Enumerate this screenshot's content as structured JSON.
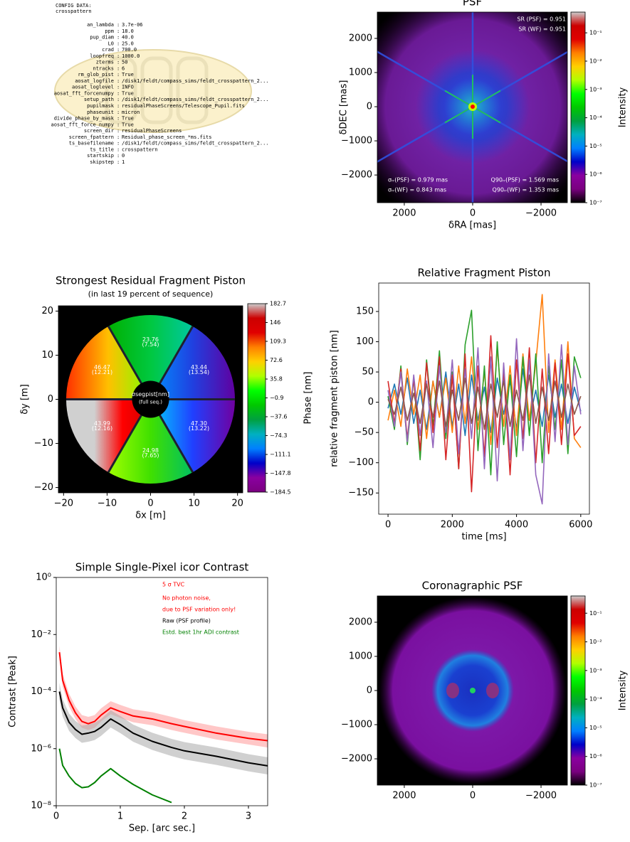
{
  "config": {
    "title": "CONFIG DATA:",
    "name": "crosspattern",
    "separator": ":",
    "entries": [
      [
        "an_lambda",
        "3.7e-06"
      ],
      [
        "ppm",
        "18.0"
      ],
      [
        "pup_diam",
        "40.0"
      ],
      [
        "L0",
        "25.0"
      ],
      [
        "crad",
        "700.0"
      ],
      [
        "loopfreq",
        "1000.0"
      ],
      [
        "zterms",
        "50"
      ],
      [
        "ntracks",
        "6"
      ],
      [
        "rm_glob_pist",
        "True"
      ],
      [
        "aosat_logfile",
        "/disk1/feldt/compass_sims/feldt_crosspattern_2..."
      ],
      [
        "aosat_loglevel",
        "INFO"
      ],
      [
        "aosat_fft_forcenumpy",
        "True"
      ],
      [
        "setup_path",
        "/disk1/feldt/compass_sims/feldt_crosspattern_2..."
      ],
      [
        "pupilmask",
        "residualPhaseScreens/Telescope_Pupil.fits"
      ],
      [
        "phaseunit",
        "micron"
      ],
      [
        "divide_phase_by_mask",
        "True"
      ],
      [
        "aosat_fft_force_numpy",
        "True"
      ],
      [
        "screen_dir",
        "residualPhaseScreens"
      ],
      [
        "screen_fpattern",
        "Residual_phase_screen_*ms.fits"
      ],
      [
        "ts_basefilename",
        "/disk1/feldt/compass_sims/feldt_crosspattern_2..."
      ],
      [
        "ts_title",
        "crosspattern"
      ],
      [
        "startskip",
        "0"
      ],
      [
        "skipstep",
        "1"
      ]
    ]
  },
  "chart_data": [
    {
      "type": "heatmap",
      "title": "PSF",
      "xlabel": "δRA [mas]",
      "ylabel": "δDEC [mas]",
      "xlim": [
        2790,
        -2770
      ],
      "ylim": [
        -2810,
        2770
      ],
      "xticks": [
        2000,
        0,
        {
          "value": -2000,
          "label": "−2000"
        }
      ],
      "yticks": [
        2000,
        1000,
        0,
        {
          "value": -1000,
          "label": "−1000"
        },
        {
          "value": -2000,
          "label": "−2000"
        }
      ],
      "annotations": [
        "SR (PSF) = 0.951",
        "SR (WF) = 0.951",
        "σᵣᵣ(PSF) = 0.979 mas",
        "σᵣᵣ(WF) = 0.843 mas",
        "Q90ᵣᵣ(PSF) = 1.569 mas",
        "Q90ᵣᵣ(WF) = 1.353 mas"
      ],
      "colorbar": {
        "label": "Intensity",
        "scale": "log",
        "lim": [
          1e-07,
          0.54
        ],
        "ticks": [
          {
            "value": 0.1,
            "label": "10⁻¹"
          },
          {
            "value": 0.01,
            "label": "10⁻²"
          },
          {
            "value": 0.001,
            "label": "10⁻³"
          },
          {
            "value": 0.0001,
            "label": "10⁻⁴"
          },
          {
            "value": 1e-05,
            "label": "10⁻⁵"
          },
          {
            "value": 1e-06,
            "label": "10⁻⁶"
          },
          {
            "value": 1e-07,
            "label": "10⁻⁷"
          }
        ],
        "colors": [
          "#000000",
          "#7a007f",
          "#8a00a0",
          "#0000c8",
          "#0080ff",
          "#00b0c0",
          "#00a040",
          "#00c800",
          "#00ff00",
          "#b0ff00",
          "#ffd000",
          "#ff8000",
          "#e00000",
          "#cc0000",
          "#cccccc"
        ]
      }
    },
    {
      "type": "segment_map",
      "title": "Strongest Residual Fragment Piston",
      "subtitle": "(in last 19 percent of sequence)",
      "xlabel": "δx [m]",
      "ylabel": "δy [m]",
      "xlim": [
        -21.2,
        21.2
      ],
      "ylim": [
        -21.2,
        21.2
      ],
      "xticks": [
        {
          "value": -20,
          "label": "−20"
        },
        {
          "value": -10,
          "label": "−10"
        },
        0,
        10,
        20
      ],
      "yticks": [
        {
          "value": -20,
          "label": "−20"
        },
        {
          "value": -10,
          "label": "−10"
        },
        0,
        10,
        20
      ],
      "segments": [
        {
          "mean": "23.76",
          "rms": "(7.54)"
        },
        {
          "mean": "43.44",
          "rms": "(13.54)"
        },
        {
          "mean": "47.30",
          "rms": "(13.22)"
        },
        {
          "mean": "24.98",
          "rms": "(7.65)"
        },
        {
          "mean": "43.99",
          "rms": "(12.16)"
        },
        {
          "mean": "46.47",
          "rms": "(12.21)"
        }
      ],
      "center_label": "σsegpist[nm]",
      "center_sublabel": "(full seq.)",
      "colorbar": {
        "label": "Phase [nm]",
        "scale": "linear",
        "lim": [
          -184.5,
          182.7
        ],
        "ticks": [
          182.7,
          146.0,
          109.3,
          72.6,
          35.8,
          {
            "value": -0.9,
            "label": "−0.9"
          },
          {
            "value": -37.6,
            "label": "−37.6"
          },
          {
            "value": -74.3,
            "label": "−74.3"
          },
          {
            "value": -111.1,
            "label": "−111.1"
          },
          {
            "value": -147.8,
            "label": "−147.8"
          },
          {
            "value": -184.5,
            "label": "−184.5"
          }
        ],
        "colors": [
          "#7a007f",
          "#8a00a0",
          "#0000c8",
          "#0080ff",
          "#00b0c0",
          "#00a040",
          "#00c800",
          "#00ff00",
          "#b0ff00",
          "#ffd000",
          "#ff8000",
          "#e00000",
          "#cc0000",
          "#cccccc"
        ]
      }
    },
    {
      "type": "line",
      "title": "Relative Fragment Piston",
      "xlabel": "time [ms]",
      "ylabel": "relative fragment piston [nm]",
      "xlim": [
        -290,
        6270
      ],
      "ylim": [
        -185,
        197
      ],
      "xticks": [
        0,
        2000,
        4000,
        6000
      ],
      "yticks": [
        {
          "value": -150,
          "label": "−150"
        },
        {
          "value": -100,
          "label": "−100"
        },
        {
          "value": -50,
          "label": "−50"
        },
        0,
        50,
        100,
        150
      ],
      "x": [
        0,
        200,
        400,
        600,
        800,
        1000,
        1200,
        1400,
        1600,
        1800,
        2000,
        2200,
        2400,
        2600,
        2800,
        3000,
        3200,
        3400,
        3600,
        3800,
        4000,
        4200,
        4400,
        4600,
        4800,
        5000,
        5200,
        5400,
        5600,
        5800,
        6000
      ],
      "series": [
        {
          "color": "#1f77b4",
          "values": [
            -10,
            30,
            -20,
            40,
            -35,
            20,
            -45,
            35,
            -25,
            50,
            -40,
            30,
            -55,
            45,
            -30,
            25,
            -50,
            40,
            -20,
            35,
            -45,
            55,
            -30,
            20,
            -40,
            45,
            -25,
            30,
            -35,
            25,
            -15
          ]
        },
        {
          "color": "#ff7f0e",
          "values": [
            -30,
            20,
            -40,
            55,
            -20,
            45,
            -60,
            35,
            -25,
            40,
            -50,
            60,
            -35,
            75,
            -45,
            50,
            -70,
            90,
            -40,
            60,
            -55,
            80,
            -30,
            65,
            178,
            -50,
            70,
            -45,
            100,
            -60,
            -75
          ]
        },
        {
          "color": "#2ca02c",
          "values": [
            10,
            -45,
            60,
            -70,
            40,
            -95,
            70,
            -40,
            85,
            -60,
            50,
            -110,
            95,
            152,
            -80,
            60,
            -120,
            100,
            -70,
            45,
            -90,
            75,
            -55,
            80,
            -100,
            60,
            -45,
            70,
            -85,
            75,
            40
          ]
        },
        {
          "color": "#d62728",
          "values": [
            35,
            -35,
            55,
            -60,
            40,
            -80,
            65,
            -50,
            75,
            -95,
            45,
            -110,
            80,
            -148,
            60,
            -90,
            110,
            -75,
            50,
            -120,
            70,
            -60,
            90,
            -100,
            55,
            -85,
            65,
            -70,
            80,
            -55,
            -40
          ]
        },
        {
          "color": "#9467bd",
          "values": [
            20,
            -40,
            50,
            -65,
            45,
            -55,
            35,
            -75,
            60,
            -50,
            70,
            -85,
            55,
            -60,
            90,
            -110,
            75,
            -130,
            65,
            -95,
            105,
            -80,
            70,
            -120,
            -168,
            80,
            -65,
            95,
            -70,
            60,
            -20
          ]
        },
        {
          "color": "#8c564b",
          "values": [
            5,
            -20,
            25,
            -30,
            15,
            -35,
            30,
            -25,
            35,
            -40,
            20,
            -30,
            40,
            -35,
            25,
            -45,
            30,
            -25,
            35,
            -40,
            20,
            -30,
            45,
            -35,
            25,
            -30,
            35,
            -25,
            30,
            -20,
            10
          ]
        }
      ]
    },
    {
      "type": "line",
      "title": "Simple Single-Pixel icor Contrast",
      "xlabel": "Sep. [arc sec.]",
      "ylabel": "Contrast [Peak]",
      "xlim": [
        0,
        3.3
      ],
      "ylim": [
        1e-08,
        1
      ],
      "yscale": "log",
      "xticks": [
        0,
        1,
        2,
        3
      ],
      "yticks": [
        {
          "value": 1,
          "label": "10⁰"
        },
        {
          "value": 0.01,
          "label": "10⁻²"
        },
        {
          "value": 0.0001,
          "label": "10⁻⁴"
        },
        {
          "value": 1e-06,
          "label": "10⁻⁶"
        },
        {
          "value": 1e-08,
          "label": "10⁻⁸"
        }
      ],
      "annotations": [
        {
          "text": "5 σ TVC",
          "color": "#ff0000"
        },
        {
          "text": "No photon noise,",
          "color": "#ff0000"
        },
        {
          "text": "due to PSF variation only!",
          "color": "#ff0000"
        },
        {
          "text": "Raw (PSF profile)",
          "color": "#000000"
        },
        {
          "text": "Estd. best 1hr ADI contrast",
          "color": "#008000"
        }
      ],
      "x": [
        0.05,
        0.1,
        0.2,
        0.3,
        0.4,
        0.5,
        0.6,
        0.7,
        0.85,
        1.0,
        1.2,
        1.5,
        1.8,
        2.0,
        2.5,
        3.0,
        3.3
      ],
      "series": [
        {
          "color": "#ff0000",
          "band_color": "#ff9999",
          "values": [
            0.0024,
            0.00025,
            5e-05,
            1.8e-05,
            9e-06,
            7.5e-06,
            9e-06,
            1.5e-05,
            2.7e-05,
            2e-05,
            1.4e-05,
            1.1e-05,
            7.5e-06,
            6e-06,
            3.5e-06,
            2.3e-06,
            1.9e-06
          ],
          "lower": [
            0.0014,
            0.00015,
            3e-05,
            1.1e-05,
            5.4e-06,
            4.5e-06,
            5.4e-06,
            9e-06,
            1.6e-05,
            1.2e-05,
            8.4e-06,
            6.6e-06,
            4.5e-06,
            3.6e-06,
            2.1e-06,
            1.4e-06,
            1.1e-06
          ],
          "upper": [
            0.004,
            0.00042,
            8.5e-05,
            3e-05,
            1.5e-05,
            1.3e-05,
            1.5e-05,
            2.6e-05,
            4.6e-05,
            3.4e-05,
            2.4e-05,
            1.9e-05,
            1.3e-05,
            1e-05,
            6e-06,
            3.9e-06,
            3.2e-06
          ]
        },
        {
          "color": "#000000",
          "band_color": "#aaaaaa",
          "values": [
            0.0001,
            2.7e-05,
            8.4e-06,
            4.7e-06,
            3.2e-06,
            3.5e-06,
            4e-06,
            5.6e-06,
            1.1e-05,
            7e-06,
            3.5e-06,
            1.8e-06,
            1.1e-06,
            8.4e-07,
            5.4e-07,
            3.2e-07,
            2.5e-07
          ],
          "lower": [
            5e-05,
            1.35e-05,
            4.2e-06,
            2.35e-06,
            1.6e-06,
            1.75e-06,
            2e-06,
            2.8e-06,
            5.5e-06,
            3.5e-06,
            1.75e-06,
            9e-07,
            5.5e-07,
            4.2e-07,
            2.7e-07,
            1.6e-07,
            1.25e-07
          ],
          "upper": [
            0.0002,
            5.4e-05,
            1.7e-05,
            9.4e-06,
            6.4e-06,
            7e-06,
            8e-06,
            1.1e-05,
            2.2e-05,
            1.4e-05,
            7e-06,
            3.6e-06,
            2.2e-06,
            1.7e-06,
            1.1e-06,
            6.4e-07,
            5e-07
          ]
        },
        {
          "color": "#008000",
          "values": [
            1e-06,
            2.6e-07,
            1.1e-07,
            6e-08,
            4.3e-08,
            4.6e-08,
            6.5e-08,
            1.1e-07,
            2e-07,
            1.1e-07,
            5.6e-08,
            2.4e-08,
            1.3e-08,
            null,
            null,
            null,
            null
          ]
        }
      ]
    },
    {
      "type": "heatmap",
      "title": "Coronagraphic PSF",
      "xlim": [
        2790,
        -2770
      ],
      "ylim": [
        -2770,
        2770
      ],
      "xticks": [
        2000,
        0,
        {
          "value": -2000,
          "label": "−2000"
        }
      ],
      "yticks": [
        2000,
        1000,
        0,
        {
          "value": -1000,
          "label": "−1000"
        },
        {
          "value": -2000,
          "label": "−2000"
        }
      ],
      "colorbar": {
        "label": "Intensity",
        "scale": "log",
        "lim": [
          1e-07,
          0.4
        ],
        "ticks": [
          {
            "value": 0.1,
            "label": "10⁻¹"
          },
          {
            "value": 0.01,
            "label": "10⁻²"
          },
          {
            "value": 0.001,
            "label": "10⁻³"
          },
          {
            "value": 0.0001,
            "label": "10⁻⁴"
          },
          {
            "value": 1e-05,
            "label": "10⁻⁵"
          },
          {
            "value": 1e-06,
            "label": "10⁻⁶"
          },
          {
            "value": 1e-07,
            "label": "10⁻⁷"
          }
        ],
        "colors": [
          "#000000",
          "#7a007f",
          "#8a00a0",
          "#0000c8",
          "#0080ff",
          "#00b0c0",
          "#00a040",
          "#00c800",
          "#00ff00",
          "#b0ff00",
          "#ffd000",
          "#ff8000",
          "#e00000",
          "#cc0000",
          "#cccccc"
        ]
      }
    }
  ]
}
